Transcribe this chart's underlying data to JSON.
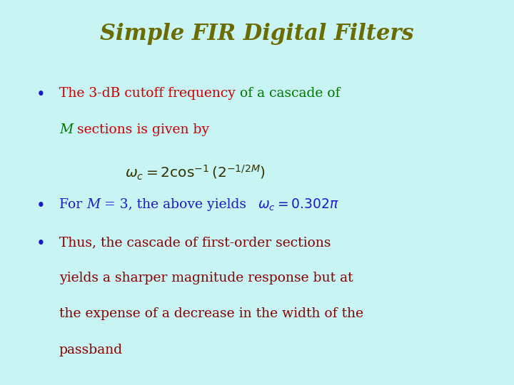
{
  "title": "Simple FIR Digital Filters",
  "title_color": "#6B6B00",
  "title_fontsize": 22,
  "background_color": "#C8F4F4",
  "blue": "#1a1acd",
  "red": "#cc0000",
  "green": "#007700",
  "darkred": "#8B0000",
  "fs": 13.5,
  "bullet1_red": "The 3-dB cutoff frequency ",
  "bullet1_green": "of a cascade of",
  "bullet1_line2_green_italic": "M",
  "bullet1_line2_red": " sections is given by",
  "bullet2_blue": "For ",
  "bullet2_blue_italic": "M",
  "bullet2_blue2": " = 3, the above yields ",
  "bullet3_lines": [
    "Thus, the cascade of first-order sections",
    "yields a sharper magnitude response but at",
    "the expense of a decrease in the width of the",
    "passband"
  ]
}
